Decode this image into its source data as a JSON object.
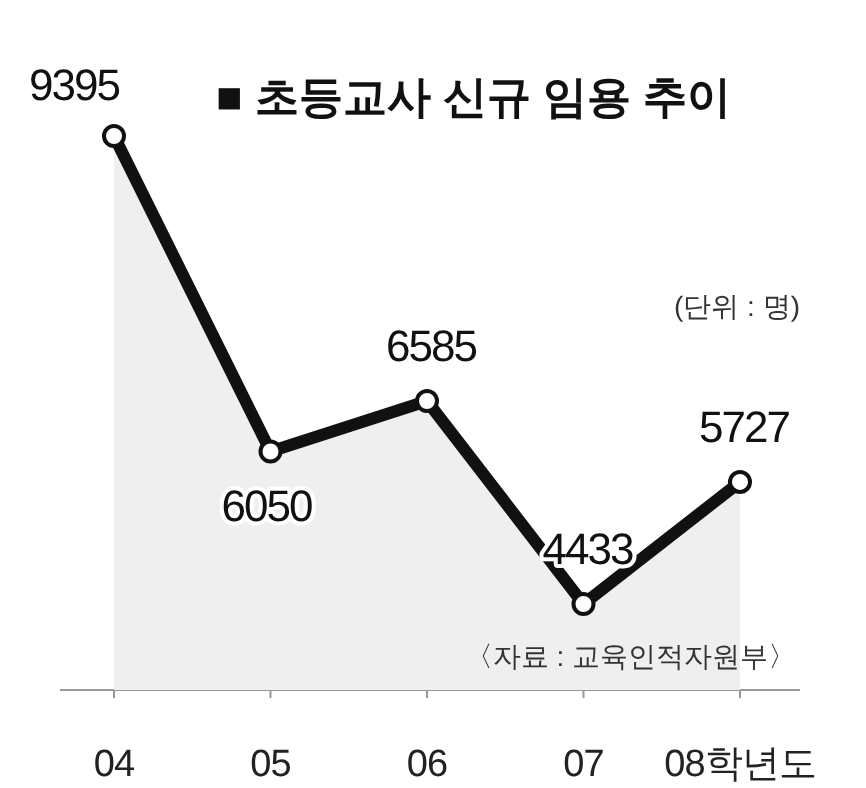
{
  "chart_data": {
    "type": "area",
    "title": "■ 초등교사 신규 임용 추이",
    "categories": [
      "04",
      "05",
      "06",
      "07",
      "08학년도"
    ],
    "series": [
      {
        "color": "#111111",
        "values": [
          9395,
          6050,
          6585,
          4433,
          5727
        ]
      }
    ],
    "data_labels": true,
    "marker": "circle",
    "annotations": [
      "(단위 : 명)",
      "〈자료 : 교육인적자원부〉"
    ]
  }
}
